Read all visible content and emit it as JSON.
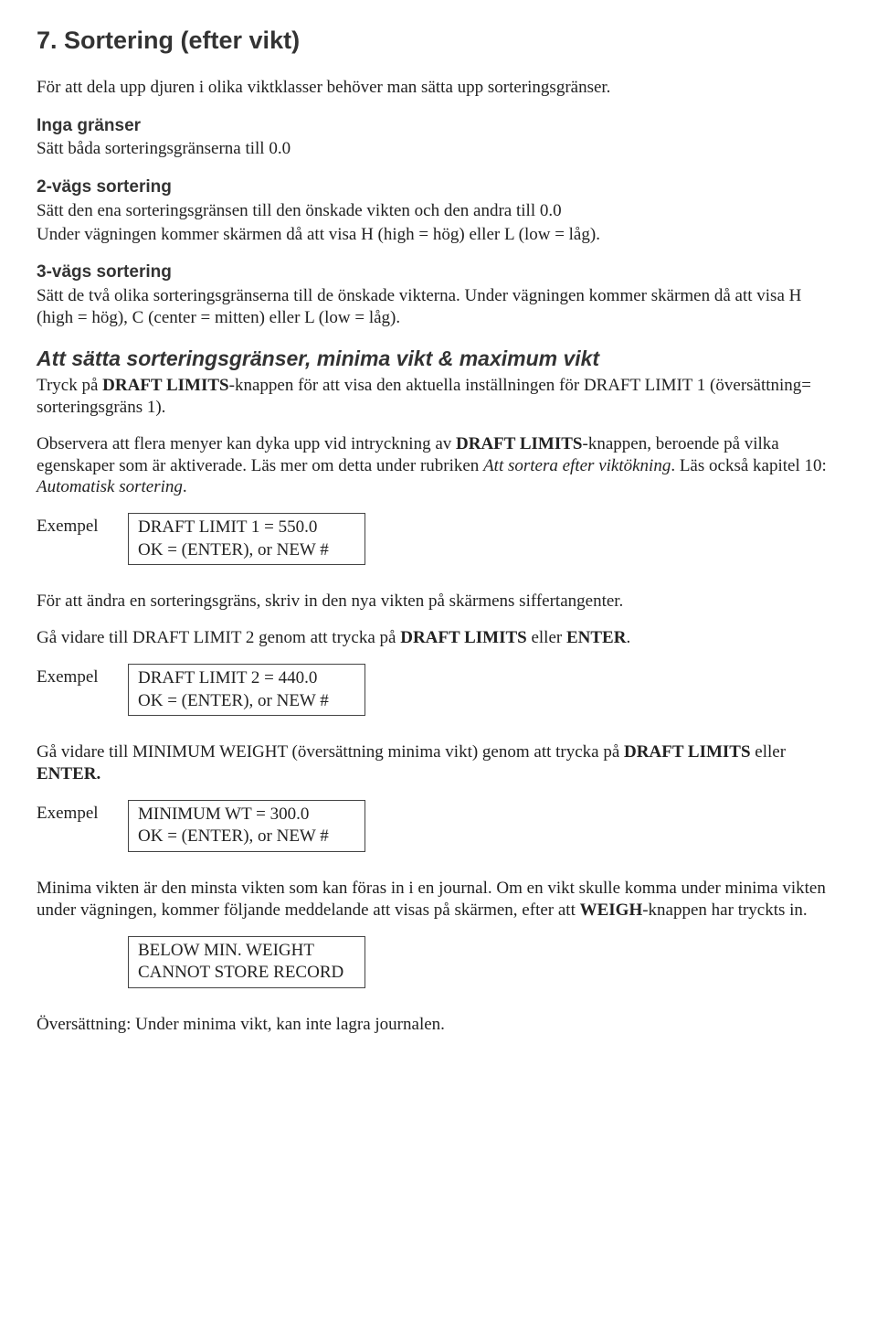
{
  "heading": "7. Sortering (efter vikt)",
  "intro": "För att dela upp djuren i olika viktklasser behöver man sätta upp sorteringsgränser.",
  "section_no_limits": {
    "title": "Inga gränser",
    "text": "Sätt båda sorteringsgränserna till 0.0"
  },
  "section_2way": {
    "title": "2-vägs sortering",
    "line1": "Sätt den ena sorteringsgränsen till den önskade vikten och den andra till 0.0",
    "line2": "Under vägningen kommer skärmen då att visa H (high = hög) eller L (low = låg)."
  },
  "section_3way": {
    "title": "3-vägs sortering",
    "text": "Sätt de två olika sorteringsgränserna till de önskade vikterna. Under vägningen kommer skärmen då att visa H (high = hög), C (center = mitten) eller L (low = låg)."
  },
  "section_limits": {
    "title": "Att sätta sorteringsgränser, minima vikt & maximum vikt",
    "p1_a": "Tryck på ",
    "p1_b": "DRAFT LIMITS",
    "p1_c": "-knappen för att visa den aktuella inställningen för DRAFT LIMIT 1 (översättning= sorteringsgräns 1).",
    "p2_a": "Observera att flera menyer kan dyka upp vid intryckning av ",
    "p2_b": "DRAFT LIMITS",
    "p2_c": "-knappen, beroende på vilka egenskaper som är aktiverade. Läs mer om detta under rubriken ",
    "p2_d": "Att sortera efter viktökning",
    "p2_e": ". Läs också kapitel 10: ",
    "p2_f": "Automatisk sortering",
    "p2_g": "."
  },
  "example_label": "Exempel",
  "example1": {
    "line1": "DRAFT LIMIT 1 = 550.0",
    "line2": "OK = (ENTER), or NEW #"
  },
  "after_ex1_p1": "För att ändra en sorteringsgräns, skriv in den nya vikten på skärmens siffertangenter.",
  "after_ex1_p2_a": "Gå vidare till DRAFT LIMIT 2 genom att trycka på ",
  "after_ex1_p2_b": "DRAFT LIMITS",
  "after_ex1_p2_c": " eller ",
  "after_ex1_p2_d": "ENTER",
  "after_ex1_p2_e": ".",
  "example2": {
    "line1": "DRAFT LIMIT 2 = 440.0",
    "line2": "OK = (ENTER), or NEW #"
  },
  "after_ex2_a": "Gå vidare till MINIMUM WEIGHT (översättning minima vikt) genom att trycka på ",
  "after_ex2_b": "DRAFT LIMITS",
  "after_ex2_c": " eller ",
  "after_ex2_d": "ENTER.",
  "example3": {
    "line1": "MINIMUM WT = 300.0",
    "line2": "OK = (ENTER), or NEW #"
  },
  "after_ex3_a": "Minima vikten är den minsta vikten som kan föras in i en journal. Om en vikt skulle komma under minima vikten under vägningen, kommer följande meddelande att visas på skärmen, efter att ",
  "after_ex3_b": "WEIGH",
  "after_ex3_c": "-knappen har tryckts in.",
  "example4": {
    "line1": "BELOW MIN. WEIGHT",
    "line2": "CANNOT STORE RECORD"
  },
  "closing": "Översättning: Under minima vikt, kan inte lagra journalen."
}
